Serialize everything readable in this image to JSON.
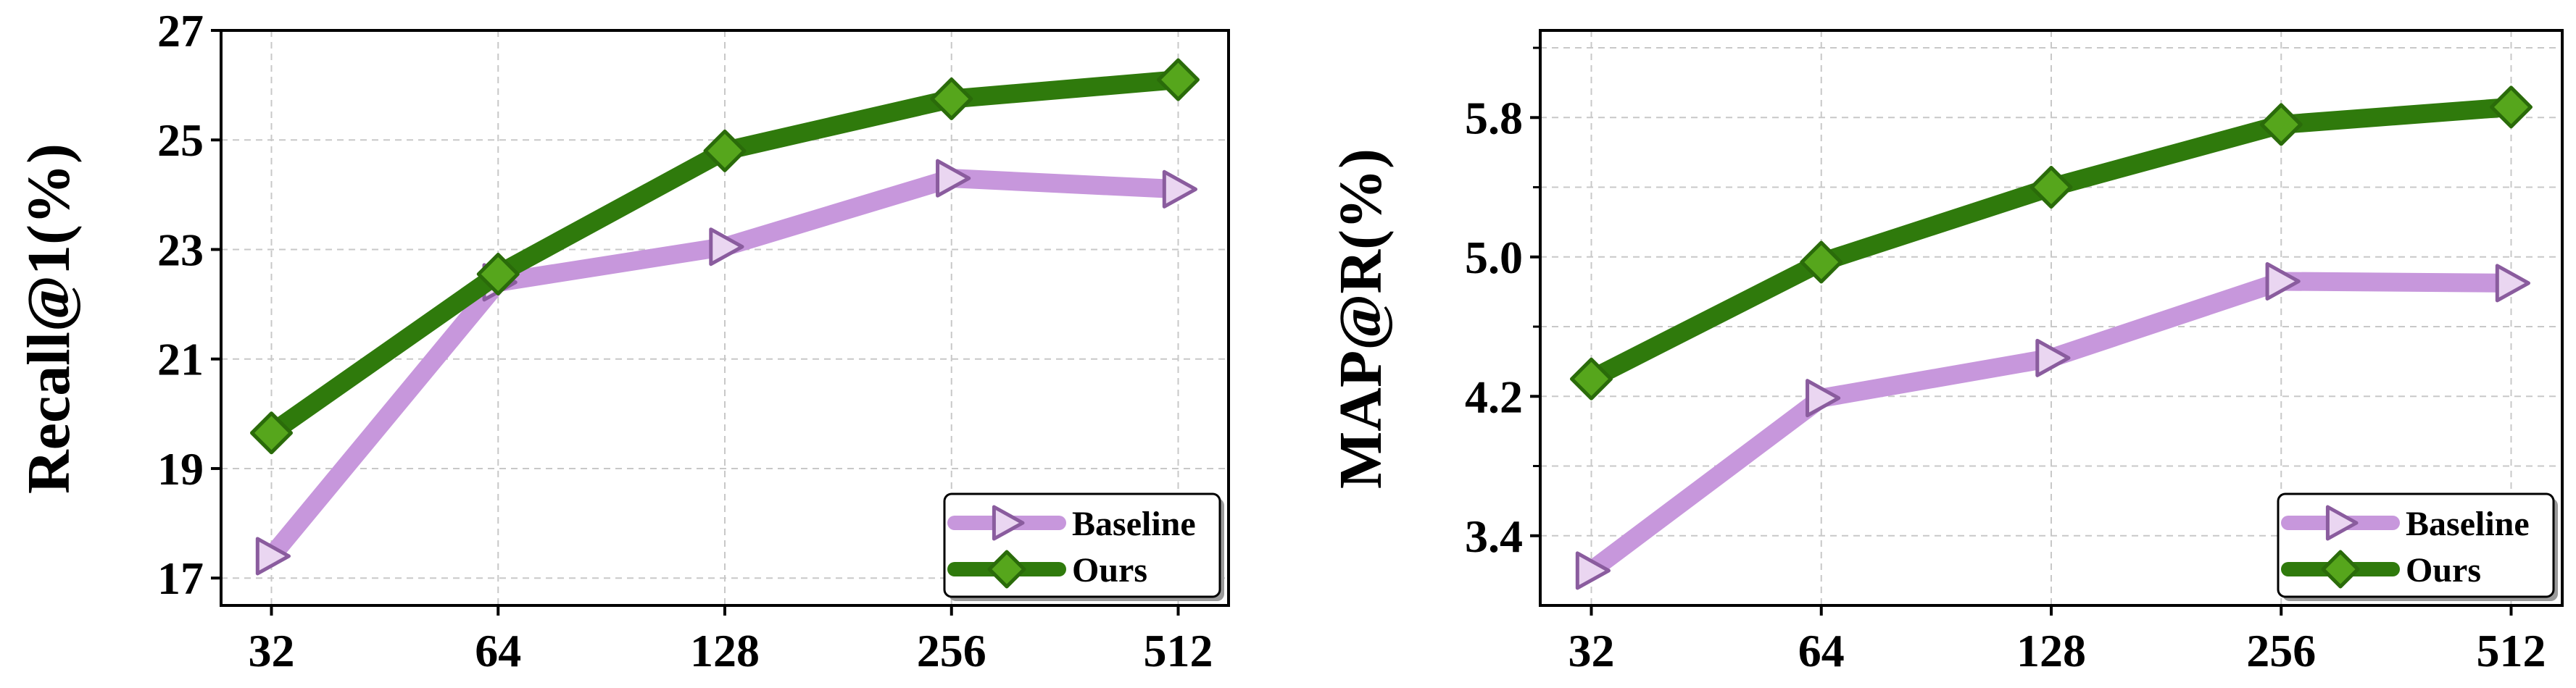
{
  "colors": {
    "baseline_line": "#c797dc",
    "baseline_marker_fill": "#ead6f1",
    "baseline_marker_edge": "#8a5c9e",
    "ours_line": "#2f7a0c",
    "ours_marker_fill": "#56a61c",
    "ours_marker_edge": "#2a6b0a"
  },
  "chart_data": [
    {
      "type": "line",
      "categories": [
        "32",
        "64",
        "128",
        "256",
        "512"
      ],
      "series": [
        {
          "name": "Baseline",
          "marker": "triangle-right",
          "values": [
            17.4,
            22.4,
            23.05,
            24.3,
            24.1
          ]
        },
        {
          "name": "Ours",
          "marker": "diamond",
          "values": [
            19.65,
            22.55,
            24.8,
            25.75,
            26.1
          ]
        }
      ],
      "xlabel": "",
      "ylabel": "Recall@1(%)",
      "ylim": [
        16.5,
        27
      ],
      "yticks": [
        17,
        19,
        21,
        23,
        25,
        27
      ],
      "ytick_labels": [
        "17",
        "19",
        "21",
        "23",
        "25",
        "27"
      ],
      "grid": true,
      "legend": "bottom-right"
    },
    {
      "type": "line",
      "categories": [
        "32",
        "64",
        "128",
        "256",
        "512"
      ],
      "series": [
        {
          "name": "Baseline",
          "marker": "triangle-right",
          "values": [
            3.2,
            4.19,
            4.42,
            4.86,
            4.85
          ]
        },
        {
          "name": "Ours",
          "marker": "diamond",
          "values": [
            4.3,
            4.97,
            5.4,
            5.76,
            5.86
          ]
        }
      ],
      "xlabel": "",
      "ylabel": "MAP@R(%)",
      "ylim": [
        3.0,
        6.3
      ],
      "yticks": [
        3.4,
        4.2,
        5.0,
        5.8
      ],
      "ytick_labels": [
        "3.4",
        "4.2",
        "5.0",
        "5.8"
      ],
      "grid": true,
      "legend": "bottom-right"
    }
  ]
}
